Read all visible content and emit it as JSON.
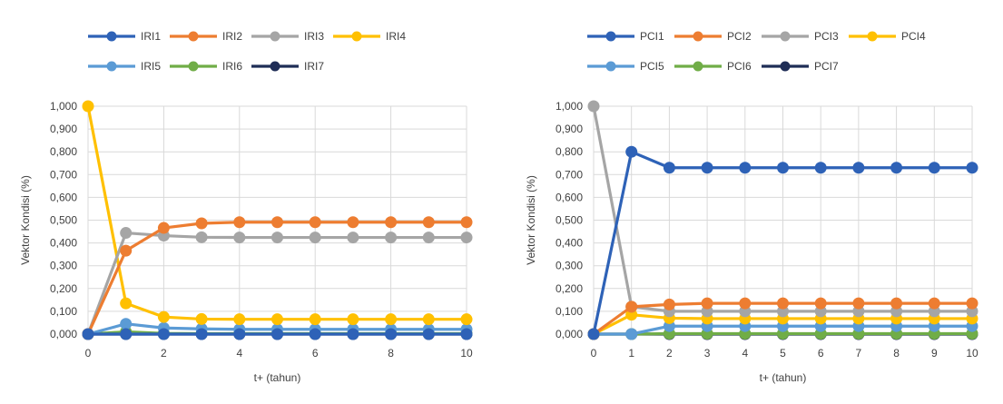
{
  "chart_data": [
    {
      "type": "line",
      "xlabel": "t+ (tahun)",
      "ylabel": "Vektor Kondisi (%)",
      "x": [
        0,
        1,
        2,
        3,
        4,
        5,
        6,
        7,
        8,
        9,
        10
      ],
      "x_ticks": [
        "0",
        "2",
        "4",
        "6",
        "8",
        "10"
      ],
      "ylim": [
        0,
        1
      ],
      "y_ticks": [
        "0,000",
        "0,100",
        "0,200",
        "0,300",
        "0,400",
        "0,500",
        "0,600",
        "0,700",
        "0,800",
        "0,900",
        "1,000"
      ],
      "grid": true,
      "legend_position": "top",
      "series": [
        {
          "name": "IRI1",
          "color": "#2e62b7",
          "values": [
            0,
            0,
            0,
            0,
            0,
            0,
            0,
            0,
            0,
            0,
            0
          ]
        },
        {
          "name": "IRI2",
          "color": "#ed7d31",
          "values": [
            0,
            0.366,
            0.466,
            0.486,
            0.491,
            0.491,
            0.491,
            0.491,
            0.491,
            0.491,
            0.491
          ]
        },
        {
          "name": "IRI3",
          "color": "#a5a5a5",
          "values": [
            0,
            0.444,
            0.432,
            0.425,
            0.424,
            0.424,
            0.424,
            0.424,
            0.424,
            0.424,
            0.424
          ]
        },
        {
          "name": "IRI4",
          "color": "#ffc000",
          "values": [
            1,
            0.135,
            0.075,
            0.066,
            0.065,
            0.065,
            0.065,
            0.065,
            0.065,
            0.065,
            0.065
          ]
        },
        {
          "name": "IRI5",
          "color": "#5b9bd5",
          "values": [
            0,
            0.045,
            0.027,
            0.023,
            0.021,
            0.021,
            0.021,
            0.021,
            0.021,
            0.021,
            0.021
          ]
        },
        {
          "name": "IRI6",
          "color": "#70ad47",
          "values": [
            0,
            0.01,
            0.003,
            0.002,
            0.002,
            0.002,
            0.002,
            0.002,
            0.002,
            0.002,
            0.002
          ]
        },
        {
          "name": "IRI7",
          "color": "#1f2d56",
          "values": [
            0,
            0,
            0,
            0,
            0,
            0,
            0,
            0,
            0,
            0,
            0
          ]
        }
      ]
    },
    {
      "type": "line",
      "xlabel": "t+ (tahun)",
      "ylabel": "Vektor Kondisi (%)",
      "x": [
        0,
        1,
        2,
        3,
        4,
        5,
        6,
        7,
        8,
        9,
        10
      ],
      "x_ticks": [
        "0",
        "1",
        "2",
        "3",
        "4",
        "5",
        "6",
        "7",
        "8",
        "9",
        "10"
      ],
      "ylim": [
        0,
        1
      ],
      "y_ticks": [
        "0,000",
        "0,100",
        "0,200",
        "0,300",
        "0,400",
        "0,500",
        "0,600",
        "0,700",
        "0,800",
        "0,900",
        "1,000"
      ],
      "grid": true,
      "legend_position": "top",
      "series": [
        {
          "name": "PCI1",
          "color": "#2e62b7",
          "values": [
            0,
            0.8,
            0.73,
            0.73,
            0.73,
            0.73,
            0.73,
            0.73,
            0.73,
            0.73,
            0.73
          ]
        },
        {
          "name": "PCI2",
          "color": "#ed7d31",
          "values": [
            0,
            0.12,
            0.13,
            0.135,
            0.135,
            0.135,
            0.135,
            0.135,
            0.135,
            0.135,
            0.135
          ]
        },
        {
          "name": "PCI3",
          "color": "#a5a5a5",
          "values": [
            1,
            0.12,
            0.1,
            0.1,
            0.1,
            0.1,
            0.1,
            0.1,
            0.1,
            0.1,
            0.1
          ]
        },
        {
          "name": "PCI4",
          "color": "#ffc000",
          "values": [
            0,
            0.085,
            0.07,
            0.068,
            0.068,
            0.068,
            0.068,
            0.068,
            0.068,
            0.068,
            0.068
          ]
        },
        {
          "name": "PCI5",
          "color": "#5b9bd5",
          "values": [
            0,
            0,
            0.035,
            0.035,
            0.035,
            0.035,
            0.035,
            0.035,
            0.035,
            0.035,
            0.035
          ]
        },
        {
          "name": "PCI6",
          "color": "#70ad47",
          "values": [
            0,
            0,
            0.002,
            0.002,
            0.002,
            0.002,
            0.002,
            0.002,
            0.002,
            0.002,
            0.002
          ]
        },
        {
          "name": "PCI7",
          "color": "#1f2d56",
          "values": [
            0,
            0,
            0,
            0,
            0,
            0,
            0,
            0,
            0,
            0,
            0
          ]
        }
      ]
    }
  ]
}
